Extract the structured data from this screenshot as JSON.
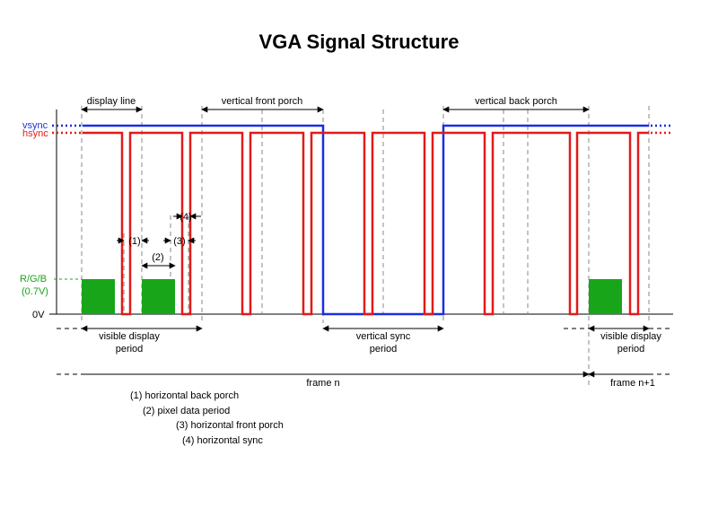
{
  "title": "VGA Signal Structure",
  "signals": {
    "vsync": {
      "label": "vsync",
      "color": "#1a2ee2"
    },
    "hsync": {
      "label": "hsync",
      "color": "#e21a1a"
    },
    "rgb": {
      "label_line1": "R/G/B",
      "label_line2": "(0.7V)",
      "color": "#19a51a"
    },
    "zero": "0V"
  },
  "top_labels": {
    "display_line": "display line",
    "vertical_front_porch": "vertical front porch",
    "vertical_back_porch": "vertical back porch"
  },
  "markers": {
    "m1": "(1)",
    "m2": "(2)",
    "m3": "(3)",
    "m4": "(4)"
  },
  "bottom_labels": {
    "visible_display_left_l1": "visible display",
    "visible_display_left_l2": "period",
    "vertical_sync_l1": "vertical sync",
    "vertical_sync_l2": "period",
    "visible_display_right_l1": "visible display",
    "visible_display_right_l2": "period",
    "frame_n": "frame n",
    "frame_n1": "frame n+1"
  },
  "legend": [
    "(1) horizontal back porch",
    "(2) pixel data period",
    "(3) horizontal front porch",
    "(4) horizontal sync"
  ]
}
